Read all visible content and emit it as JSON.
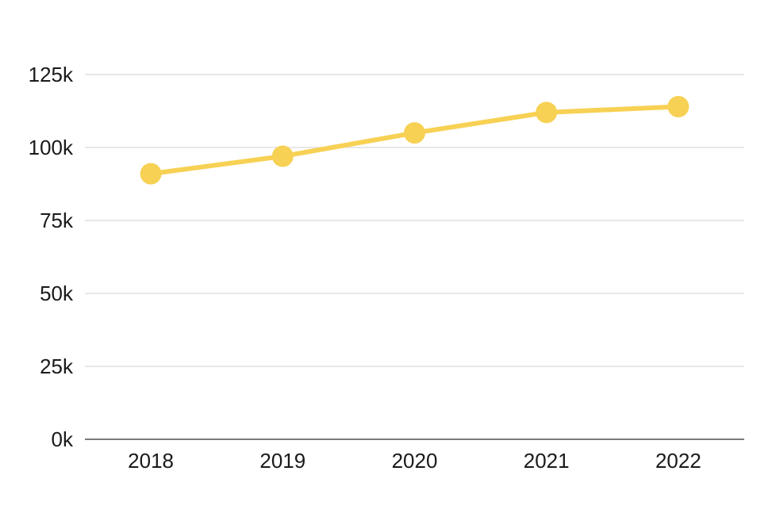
{
  "chart_data": {
    "type": "line",
    "categories": [
      "2018",
      "2019",
      "2020",
      "2021",
      "2022"
    ],
    "series": [
      {
        "name": "value",
        "values": [
          91000,
          97000,
          105000,
          112000,
          114000
        ]
      }
    ],
    "xlabel": "",
    "ylabel": "",
    "ylim": [
      0,
      125000
    ],
    "y_tick_step": 25000,
    "y_tick_labels": [
      "0k",
      "25k",
      "50k",
      "75k",
      "100k",
      "125k"
    ],
    "grid": true,
    "legend": "none",
    "colors": {
      "line": "#F7D154",
      "marker": "#F7D154",
      "gridline": "#DBDBDB",
      "axis_line": "#7A7A7A",
      "tick_text": "#1A1A1A",
      "background": "#FFFFFF"
    }
  }
}
